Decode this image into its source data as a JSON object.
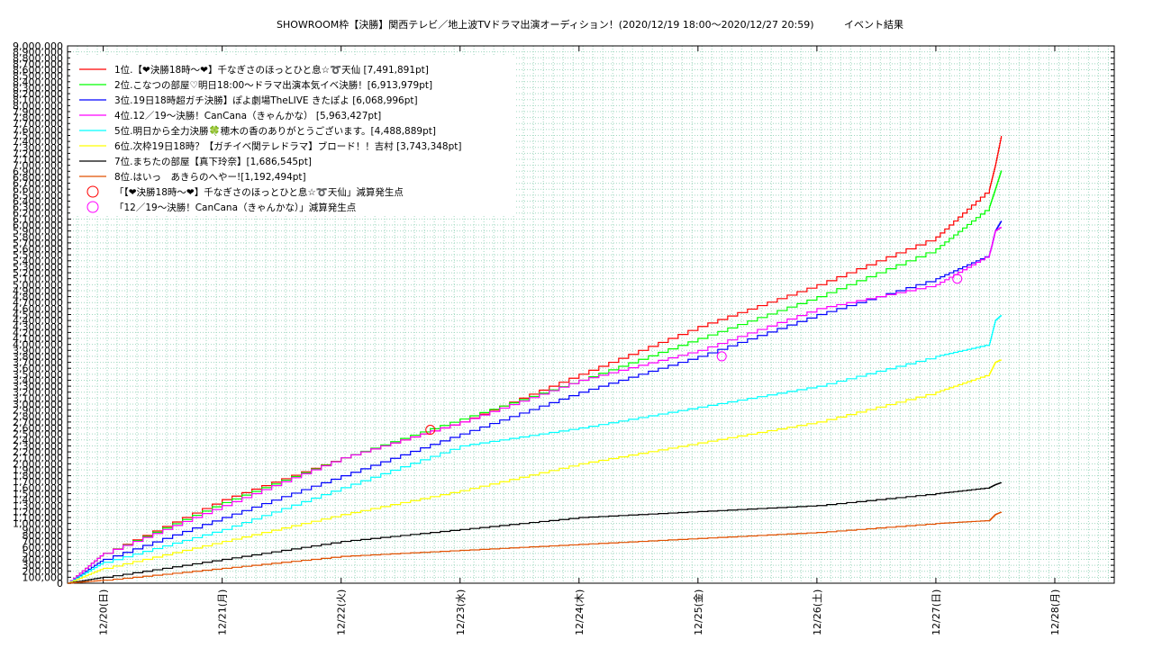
{
  "chart_data": {
    "type": "line",
    "title": "SHOWROOM枠【決勝】関西テレビ／地上波TVドラマ出演オーディション！(2020/12/19 18:00～2020/12/27 20:59)",
    "title_suffix": "イベント結果",
    "xlabel": "",
    "ylabel": "",
    "grid": true,
    "legend_position": "top-left",
    "x_ticks": [
      "12/20(日)",
      "12/21(月)",
      "12/22(火)",
      "12/23(水)",
      "12/24(木)",
      "12/25(金)",
      "12/26(土)",
      "12/27(日)",
      "12/28(月)"
    ],
    "x_range_days": [
      0,
      8.8
    ],
    "ylim": [
      0,
      9000000
    ],
    "y_tick_step": 100000,
    "series": [
      {
        "name": "1位.【❤決勝18時〜❤】千なぎさのほっとひと息☆➰天仙 [7,491,891pt]",
        "color": "#ff0000",
        "x": [
          0,
          0.3,
          1.3,
          2.3,
          3.3,
          4.3,
          5.3,
          6.3,
          7.3,
          7.75,
          7.8,
          7.85
        ],
        "y": [
          0,
          500000,
          1400000,
          2100000,
          2700000,
          3500000,
          4300000,
          5000000,
          5800000,
          6600000,
          7000000,
          7491891
        ]
      },
      {
        "name": "2位.こなつの部屋♡明日18:00〜ドラマ出演本気イベ決勝！[6,913,979pt]",
        "color": "#00ff00",
        "x": [
          0,
          0.3,
          1.3,
          2.3,
          3.3,
          4.3,
          5.3,
          6.3,
          7.3,
          7.75,
          7.8,
          7.85
        ],
        "y": [
          0,
          500000,
          1350000,
          2100000,
          2750000,
          3400000,
          4100000,
          4800000,
          5600000,
          6300000,
          6600000,
          6913979
        ]
      },
      {
        "name": "3位.19日18時超ガチ決勝】ぽよ劇場TheLIVE きたぽよ [6,068,996pt]",
        "color": "#0000ff",
        "x": [
          0,
          0.3,
          1.3,
          2.3,
          3.3,
          4.3,
          5.3,
          6.3,
          7.3,
          7.75,
          7.8,
          7.85
        ],
        "y": [
          0,
          400000,
          1100000,
          1800000,
          2500000,
          3200000,
          3800000,
          4500000,
          5100000,
          5500000,
          5900000,
          6068996
        ]
      },
      {
        "name": "4位.12／19〜決勝！CanCana（きゃんかな） [5,963,427pt]",
        "color": "#ff00ff",
        "x": [
          0,
          0.3,
          1.3,
          2.3,
          3.3,
          4.3,
          5.3,
          6.3,
          7.3,
          7.75,
          7.8,
          7.85
        ],
        "y": [
          0,
          500000,
          1300000,
          2100000,
          2700000,
          3400000,
          3900000,
          4600000,
          5000000,
          5500000,
          5900000,
          5963427
        ]
      },
      {
        "name": "5位.明日から全力決勝🍀穂木の香のありがとうございます。[4,488,889pt]",
        "color": "#00ffff",
        "x": [
          0,
          0.3,
          1.3,
          2.3,
          3.3,
          4.3,
          5.3,
          6.3,
          7.3,
          7.75,
          7.8,
          7.85
        ],
        "y": [
          0,
          350000,
          900000,
          1600000,
          2300000,
          2600000,
          2950000,
          3300000,
          3800000,
          4000000,
          4400000,
          4488889
        ]
      },
      {
        "name": "6位.次枠19日18時？【ガチイベ関テレドラマ】ブロード！！吉村 [3,743,348pt]",
        "color": "#ffff00",
        "x": [
          0,
          0.3,
          1.3,
          2.3,
          3.3,
          4.3,
          5.3,
          6.3,
          7.3,
          7.75,
          7.8,
          7.85
        ],
        "y": [
          0,
          250000,
          700000,
          1150000,
          1550000,
          2000000,
          2350000,
          2700000,
          3200000,
          3500000,
          3700000,
          3743348
        ]
      },
      {
        "name": "7位.まちたの部屋【真下玲奈】[1,686,545pt]",
        "color": "#000000",
        "x": [
          0,
          0.3,
          1.3,
          2.3,
          3.3,
          4.3,
          5.3,
          6.3,
          7.3,
          7.75,
          7.8,
          7.85
        ],
        "y": [
          0,
          100000,
          400000,
          700000,
          900000,
          1100000,
          1200000,
          1300000,
          1500000,
          1600000,
          1650000,
          1686545
        ]
      },
      {
        "name": "8位.はいっ　あきらのへやー![1,192,494pt]",
        "color": "#e05000",
        "x": [
          0,
          0.3,
          1.3,
          2.3,
          3.3,
          4.3,
          5.3,
          6.3,
          7.3,
          7.75,
          7.8,
          7.85
        ],
        "y": [
          0,
          50000,
          250000,
          450000,
          550000,
          650000,
          750000,
          850000,
          1000000,
          1050000,
          1150000,
          1192494
        ]
      }
    ],
    "markers": [
      {
        "name": "「【❤決勝18時〜❤】千なぎさのほっとひと息☆➰天仙」減算発生点",
        "color": "#ff0000",
        "x": 3.05,
        "y": 2570000
      },
      {
        "name": "「12／19〜決勝！CanCana（きゃんかな）」減算発生点",
        "color": "#ff00ff",
        "x": 5.5,
        "y": 3800000
      },
      {
        "name": "「12／19〜決勝！CanCana（きゃんかな）」減算発生点",
        "color": "#ff00ff",
        "x": 7.48,
        "y": 5100000
      }
    ]
  }
}
